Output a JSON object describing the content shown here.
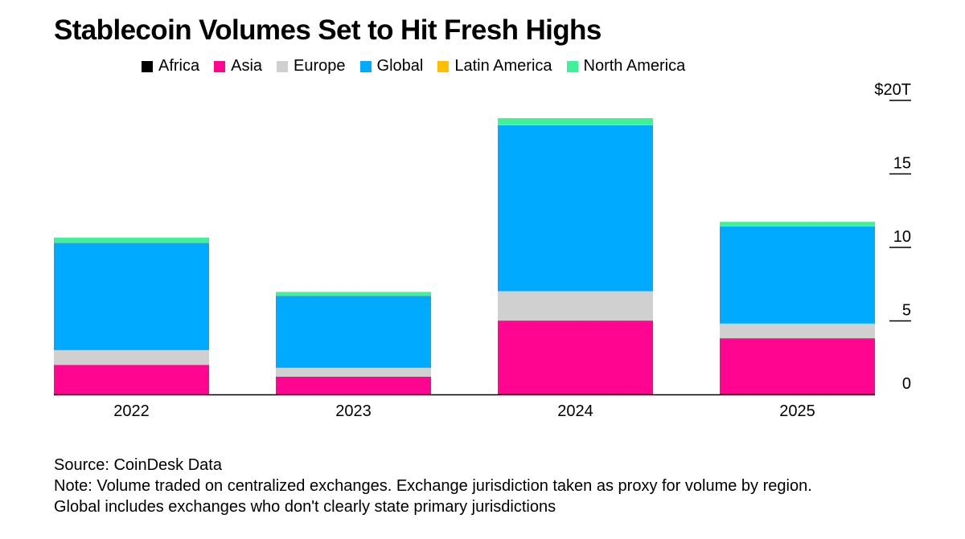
{
  "title": "Stablecoin Volumes Set to Hit Fresh Highs",
  "colors": {
    "Africa": "#000000",
    "Asia": "#ff0590",
    "Europe": "#d0d0d0",
    "Global": "#00aaff",
    "Latin America": "#ffbf00",
    "North America": "#3ff298",
    "axis": "#000000"
  },
  "chart_data": {
    "type": "bar",
    "stacked": true,
    "title": "Stablecoin Volumes Set to Hit Fresh Highs",
    "xlabel": "",
    "ylabel": "",
    "categories": [
      "2022",
      "2023",
      "2024",
      "2025"
    ],
    "series": [
      {
        "name": "Africa",
        "values": [
          0.01,
          0.01,
          0.02,
          0.02
        ]
      },
      {
        "name": "Asia",
        "values": [
          2.0,
          1.2,
          5.0,
          3.8
        ]
      },
      {
        "name": "Europe",
        "values": [
          1.0,
          0.6,
          2.0,
          1.0
        ]
      },
      {
        "name": "Global",
        "values": [
          7.3,
          4.9,
          11.3,
          6.6
        ]
      },
      {
        "name": "Latin America",
        "values": [
          0.01,
          0.01,
          0.02,
          0.02
        ]
      },
      {
        "name": "North America",
        "values": [
          0.35,
          0.25,
          0.45,
          0.3
        ]
      }
    ],
    "y_ticks": [
      "0",
      "5",
      "10",
      "15",
      "$20T"
    ],
    "y_tick_values": [
      0,
      5,
      10,
      15,
      20
    ],
    "ylim": [
      0,
      20
    ],
    "grid": false,
    "legend_position": "top"
  },
  "footer": {
    "source": "Source: CoinDesk Data",
    "note": "Note: Volume traded on centralized exchanges. Exchange jurisdiction taken as proxy for volume by region.",
    "note2": "Global includes exchanges who don't clearly state primary jurisdictions"
  }
}
